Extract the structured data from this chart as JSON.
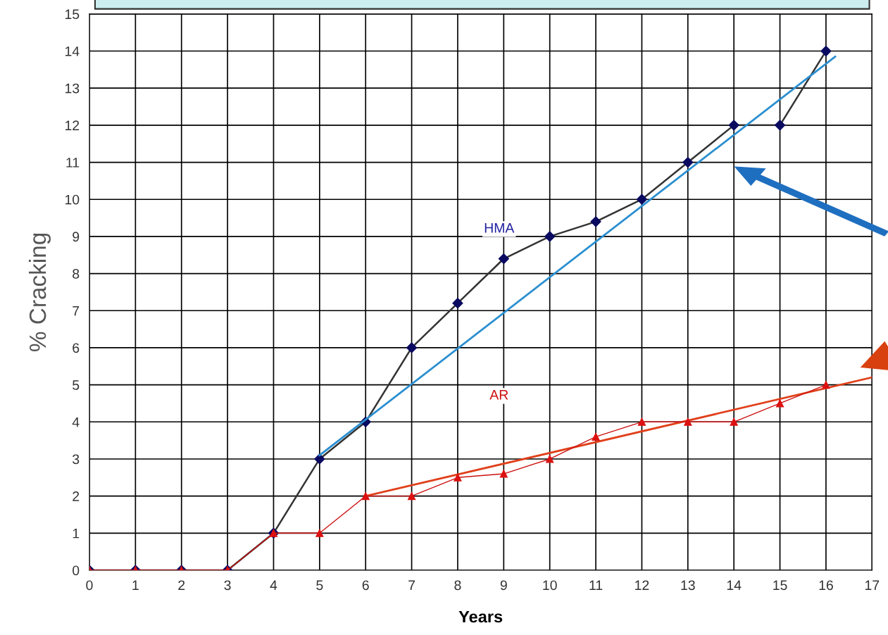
{
  "chart_data": {
    "type": "line",
    "xlabel": "Years",
    "ylabel": "% Cracking",
    "xlim": [
      0,
      17
    ],
    "ylim": [
      0,
      15
    ],
    "xticks": [
      0,
      1,
      2,
      3,
      4,
      5,
      6,
      7,
      8,
      9,
      10,
      11,
      12,
      13,
      14,
      15,
      16,
      17
    ],
    "yticks": [
      0,
      1,
      2,
      3,
      4,
      5,
      6,
      7,
      8,
      9,
      10,
      11,
      12,
      13,
      14,
      15
    ],
    "grid": true,
    "legend": false,
    "line_style": "solid",
    "series": [
      {
        "name": "HMA",
        "color": "#333333",
        "marker": "diamond",
        "x": [
          0,
          1,
          2,
          3,
          4,
          5,
          6,
          7,
          8,
          9,
          10,
          11,
          12,
          13,
          14,
          15,
          16
        ],
        "values": [
          0,
          0,
          0,
          0,
          1,
          3,
          4,
          6,
          7.2,
          8.4,
          9,
          9.4,
          10,
          11,
          12,
          12,
          14
        ]
      },
      {
        "name": "AR",
        "color": "#cc1111",
        "marker": "triangle",
        "x": [
          0,
          1,
          2,
          3,
          4,
          5,
          6,
          7,
          8,
          9,
          10,
          11,
          12,
          13,
          14,
          15,
          16
        ],
        "values": [
          0,
          0,
          0,
          0,
          1,
          1,
          2,
          2,
          2.5,
          2.6,
          3,
          3.6,
          4,
          4,
          4,
          4.5,
          5
        ]
      },
      {
        "color": "#2a8fd0",
        "marker": "none",
        "x": [
          5,
          16.2
        ],
        "values": [
          3.1,
          13.85
        ]
      },
      {
        "color": "#e0401a",
        "marker": "none",
        "x": [
          6,
          17
        ],
        "values": [
          2.0,
          5.2
        ]
      }
    ]
  }
}
